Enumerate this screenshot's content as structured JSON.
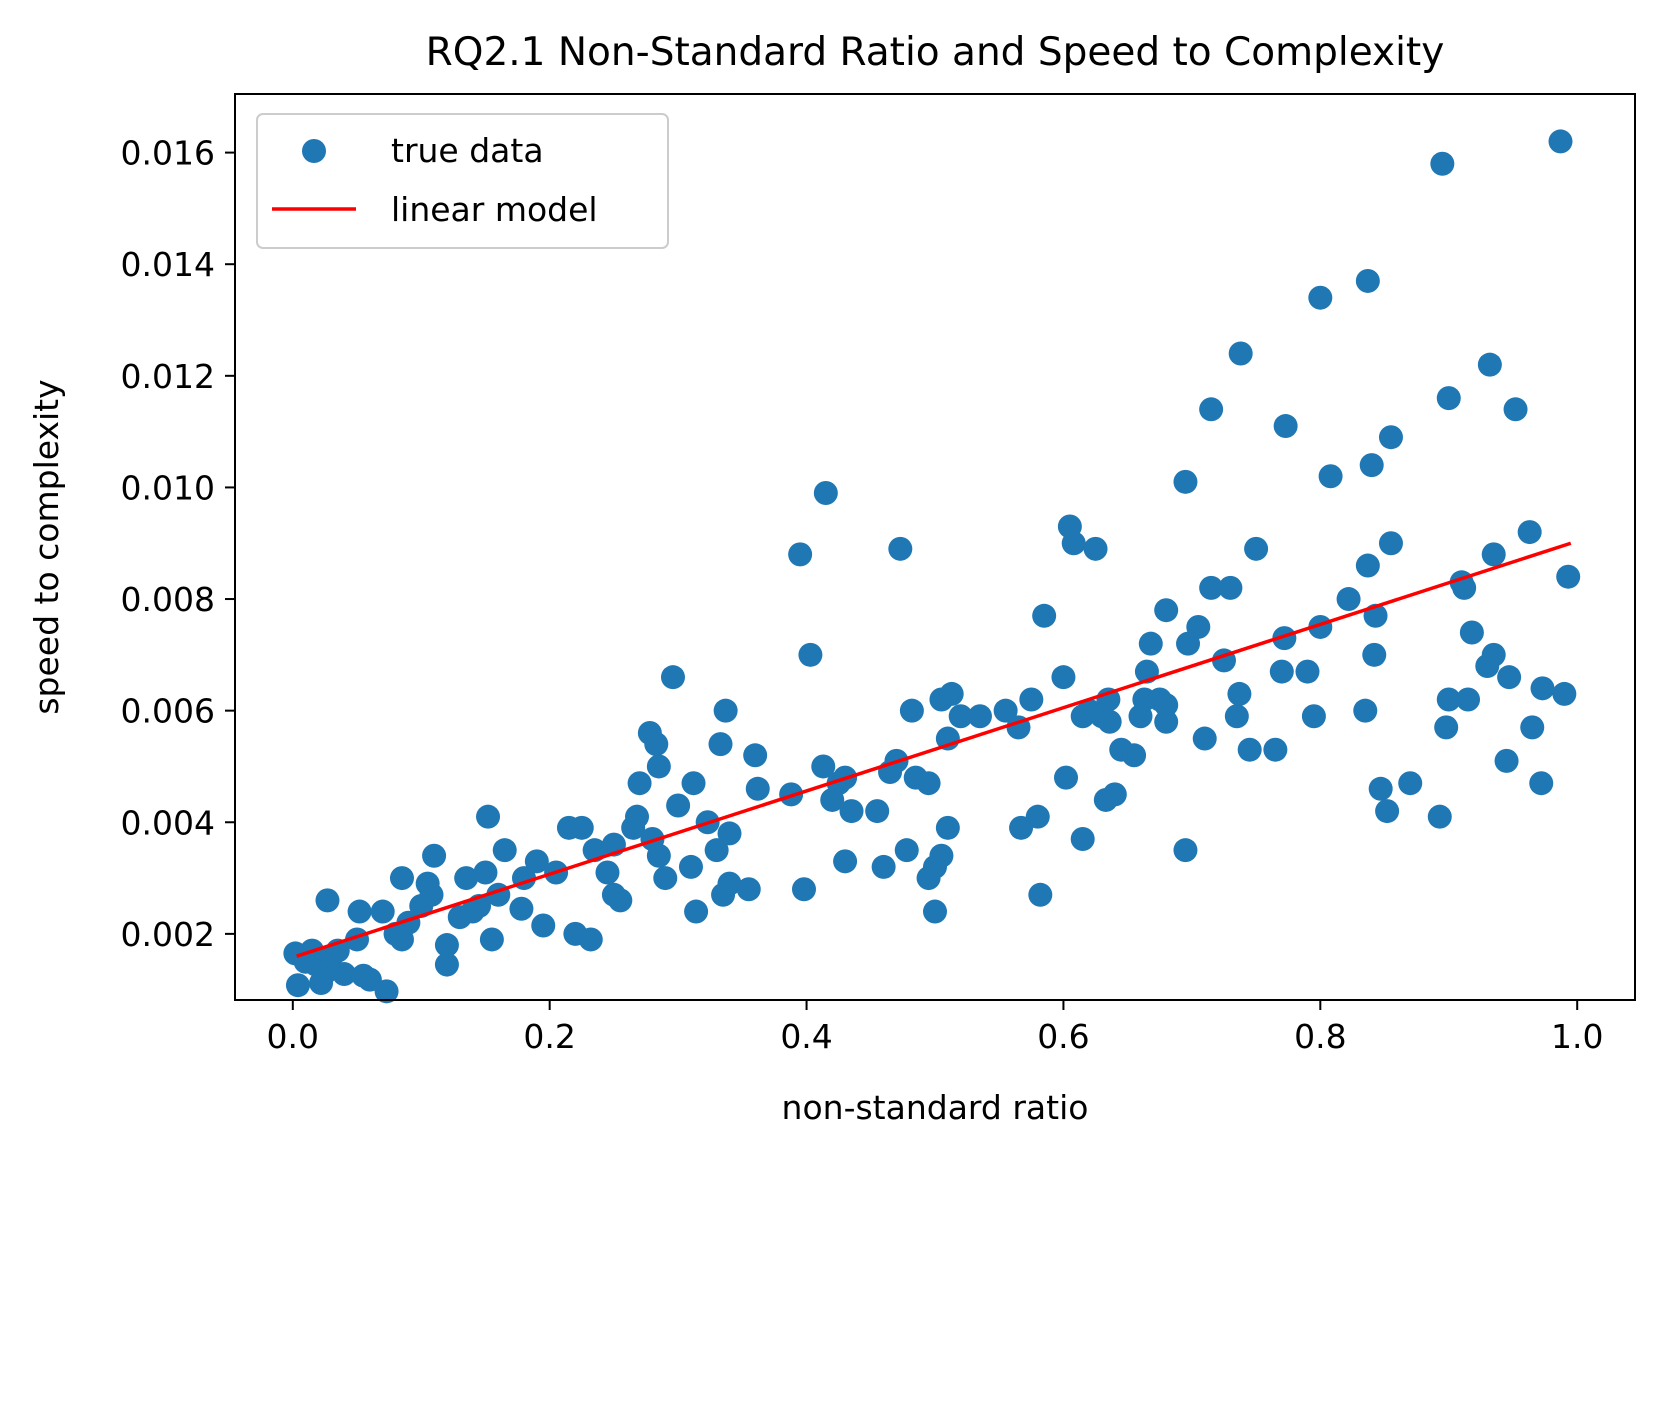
{
  "chart_data": {
    "type": "scatter",
    "title": "RQ2.1 Non-Standard Ratio and Speed to Complexity",
    "xlabel": "non-standard ratio",
    "ylabel": "speed to complexity",
    "xlim": [
      -0.045,
      1.045
    ],
    "ylim": [
      0.000815,
      0.01705
    ],
    "xticks": [
      0.0,
      0.2,
      0.4,
      0.6,
      0.8,
      1.0
    ],
    "xtick_labels": [
      "0.0",
      "0.2",
      "0.4",
      "0.6",
      "0.8",
      "1.0"
    ],
    "yticks": [
      0.002,
      0.004,
      0.006,
      0.008,
      0.01,
      0.012,
      0.014,
      0.016
    ],
    "ytick_labels": [
      "0.002",
      "0.004",
      "0.006",
      "0.008",
      "0.010",
      "0.012",
      "0.014",
      "0.016"
    ],
    "grid": false,
    "legend": {
      "position": "top-left",
      "entries": [
        "true data",
        "linear model"
      ]
    },
    "colors": {
      "points": "#1f77b4",
      "line": "#ff0000"
    },
    "series": [
      {
        "name": "true data",
        "kind": "scatter",
        "points": [
          [
            0.002,
            0.00165
          ],
          [
            0.004,
            0.00108
          ],
          [
            0.01,
            0.0015
          ],
          [
            0.015,
            0.0017
          ],
          [
            0.018,
            0.00145
          ],
          [
            0.022,
            0.00112
          ],
          [
            0.025,
            0.0013
          ],
          [
            0.027,
            0.0026
          ],
          [
            0.03,
            0.0016
          ],
          [
            0.035,
            0.0017
          ],
          [
            0.04,
            0.00128
          ],
          [
            0.05,
            0.0019
          ],
          [
            0.052,
            0.0024
          ],
          [
            0.055,
            0.00125
          ],
          [
            0.06,
            0.00118
          ],
          [
            0.07,
            0.0024
          ],
          [
            0.073,
            0.00097
          ],
          [
            0.08,
            0.002
          ],
          [
            0.085,
            0.0019
          ],
          [
            0.085,
            0.003
          ],
          [
            0.09,
            0.0022
          ],
          [
            0.1,
            0.0025
          ],
          [
            0.105,
            0.0029
          ],
          [
            0.108,
            0.0027
          ],
          [
            0.11,
            0.0034
          ],
          [
            0.12,
            0.0018
          ],
          [
            0.12,
            0.00145
          ],
          [
            0.13,
            0.0023
          ],
          [
            0.135,
            0.003
          ],
          [
            0.14,
            0.0024
          ],
          [
            0.145,
            0.0025
          ],
          [
            0.15,
            0.0031
          ],
          [
            0.152,
            0.0041
          ],
          [
            0.155,
            0.0019
          ],
          [
            0.16,
            0.0027
          ],
          [
            0.165,
            0.0035
          ],
          [
            0.178,
            0.00245
          ],
          [
            0.18,
            0.003
          ],
          [
            0.19,
            0.0033
          ],
          [
            0.195,
            0.00215
          ],
          [
            0.205,
            0.0031
          ],
          [
            0.215,
            0.0039
          ],
          [
            0.22,
            0.002
          ],
          [
            0.225,
            0.0039
          ],
          [
            0.232,
            0.0019
          ],
          [
            0.235,
            0.0035
          ],
          [
            0.245,
            0.0031
          ],
          [
            0.25,
            0.0036
          ],
          [
            0.25,
            0.0027
          ],
          [
            0.255,
            0.0026
          ],
          [
            0.265,
            0.0039
          ],
          [
            0.268,
            0.0041
          ],
          [
            0.27,
            0.0047
          ],
          [
            0.278,
            0.0056
          ],
          [
            0.28,
            0.0037
          ],
          [
            0.283,
            0.0054
          ],
          [
            0.285,
            0.005
          ],
          [
            0.285,
            0.0034
          ],
          [
            0.29,
            0.003
          ],
          [
            0.296,
            0.0066
          ],
          [
            0.3,
            0.0043
          ],
          [
            0.31,
            0.0032
          ],
          [
            0.312,
            0.0047
          ],
          [
            0.314,
            0.0024
          ],
          [
            0.323,
            0.004
          ],
          [
            0.33,
            0.0035
          ],
          [
            0.333,
            0.0054
          ],
          [
            0.335,
            0.0027
          ],
          [
            0.337,
            0.006
          ],
          [
            0.34,
            0.0038
          ],
          [
            0.34,
            0.0029
          ],
          [
            0.355,
            0.0028
          ],
          [
            0.36,
            0.0052
          ],
          [
            0.362,
            0.0046
          ],
          [
            0.388,
            0.0045
          ],
          [
            0.395,
            0.0088
          ],
          [
            0.398,
            0.0028
          ],
          [
            0.403,
            0.007
          ],
          [
            0.413,
            0.005
          ],
          [
            0.415,
            0.0099
          ],
          [
            0.42,
            0.0044
          ],
          [
            0.425,
            0.0047
          ],
          [
            0.43,
            0.0033
          ],
          [
            0.43,
            0.0048
          ],
          [
            0.435,
            0.0042
          ],
          [
            0.455,
            0.0042
          ],
          [
            0.46,
            0.0032
          ],
          [
            0.465,
            0.0049
          ],
          [
            0.47,
            0.0051
          ],
          [
            0.473,
            0.0089
          ],
          [
            0.478,
            0.0035
          ],
          [
            0.482,
            0.006
          ],
          [
            0.485,
            0.0048
          ],
          [
            0.495,
            0.0047
          ],
          [
            0.495,
            0.003
          ],
          [
            0.5,
            0.0024
          ],
          [
            0.5,
            0.0032
          ],
          [
            0.505,
            0.0034
          ],
          [
            0.505,
            0.0062
          ],
          [
            0.51,
            0.0055
          ],
          [
            0.51,
            0.0039
          ],
          [
            0.513,
            0.0063
          ],
          [
            0.52,
            0.0059
          ],
          [
            0.535,
            0.0059
          ],
          [
            0.555,
            0.006
          ],
          [
            0.565,
            0.0057
          ],
          [
            0.567,
            0.0039
          ],
          [
            0.575,
            0.0062
          ],
          [
            0.58,
            0.0041
          ],
          [
            0.582,
            0.0027
          ],
          [
            0.585,
            0.0077
          ],
          [
            0.6,
            0.0066
          ],
          [
            0.602,
            0.0048
          ],
          [
            0.605,
            0.0093
          ],
          [
            0.608,
            0.009
          ],
          [
            0.615,
            0.0059
          ],
          [
            0.615,
            0.0037
          ],
          [
            0.62,
            0.006
          ],
          [
            0.625,
            0.0089
          ],
          [
            0.63,
            0.0059
          ],
          [
            0.633,
            0.0044
          ],
          [
            0.635,
            0.0062
          ],
          [
            0.636,
            0.0058
          ],
          [
            0.64,
            0.0045
          ],
          [
            0.645,
            0.0053
          ],
          [
            0.655,
            0.0052
          ],
          [
            0.66,
            0.0059
          ],
          [
            0.663,
            0.0062
          ],
          [
            0.665,
            0.0067
          ],
          [
            0.668,
            0.0072
          ],
          [
            0.675,
            0.0062
          ],
          [
            0.68,
            0.0061
          ],
          [
            0.68,
            0.0058
          ],
          [
            0.68,
            0.0078
          ],
          [
            0.695,
            0.0035
          ],
          [
            0.695,
            0.0101
          ],
          [
            0.697,
            0.0072
          ],
          [
            0.705,
            0.0075
          ],
          [
            0.71,
            0.0055
          ],
          [
            0.715,
            0.0114
          ],
          [
            0.715,
            0.0082
          ],
          [
            0.725,
            0.0069
          ],
          [
            0.73,
            0.0082
          ],
          [
            0.735,
            0.0059
          ],
          [
            0.737,
            0.0063
          ],
          [
            0.738,
            0.0124
          ],
          [
            0.745,
            0.0053
          ],
          [
            0.75,
            0.0089
          ],
          [
            0.765,
            0.0053
          ],
          [
            0.77,
            0.0067
          ],
          [
            0.772,
            0.0073
          ],
          [
            0.773,
            0.0111
          ],
          [
            0.79,
            0.0067
          ],
          [
            0.795,
            0.0059
          ],
          [
            0.8,
            0.0075
          ],
          [
            0.8,
            0.0134
          ],
          [
            0.808,
            0.0102
          ],
          [
            0.822,
            0.008
          ],
          [
            0.835,
            0.006
          ],
          [
            0.837,
            0.0086
          ],
          [
            0.837,
            0.0137
          ],
          [
            0.84,
            0.0104
          ],
          [
            0.842,
            0.007
          ],
          [
            0.843,
            0.0077
          ],
          [
            0.847,
            0.0046
          ],
          [
            0.852,
            0.0042
          ],
          [
            0.855,
            0.0109
          ],
          [
            0.855,
            0.009
          ],
          [
            0.87,
            0.0047
          ],
          [
            0.893,
            0.0041
          ],
          [
            0.895,
            0.0158
          ],
          [
            0.898,
            0.0057
          ],
          [
            0.9,
            0.0116
          ],
          [
            0.9,
            0.0062
          ],
          [
            0.91,
            0.0083
          ],
          [
            0.912,
            0.0082
          ],
          [
            0.915,
            0.0062
          ],
          [
            0.918,
            0.0074
          ],
          [
            0.93,
            0.0068
          ],
          [
            0.932,
            0.0122
          ],
          [
            0.935,
            0.007
          ],
          [
            0.935,
            0.0088
          ],
          [
            0.945,
            0.0051
          ],
          [
            0.947,
            0.0066
          ],
          [
            0.952,
            0.0114
          ],
          [
            0.963,
            0.0092
          ],
          [
            0.965,
            0.0057
          ],
          [
            0.972,
            0.0047
          ],
          [
            0.973,
            0.0064
          ],
          [
            0.987,
            0.0162
          ],
          [
            0.99,
            0.0063
          ],
          [
            0.993,
            0.0084
          ]
        ]
      },
      {
        "name": "linear model",
        "kind": "line",
        "points": [
          [
            0.003,
            0.0016
          ],
          [
            0.995,
            0.009
          ]
        ]
      }
    ]
  }
}
